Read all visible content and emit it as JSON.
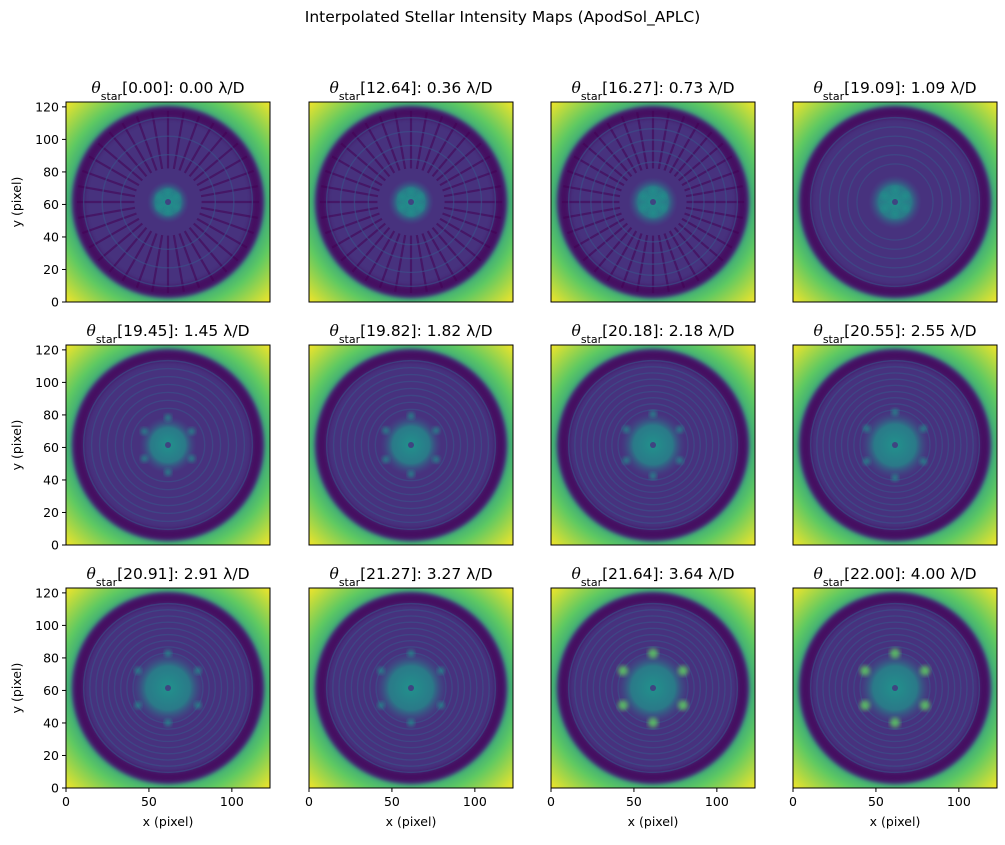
{
  "figure": {
    "title": "Interpolated Stellar Intensity Maps (ApodSol_APLC)"
  },
  "chart_data": {
    "type": "heatmap",
    "colormap": "viridis",
    "grid": {
      "rows": 3,
      "cols": 4
    },
    "xlabel": "x (pixel)",
    "ylabel": "y (pixel)",
    "xlim": [
      0,
      123
    ],
    "ylim": [
      0,
      123
    ],
    "xticks": [
      0,
      50,
      100
    ],
    "yticks": [
      0,
      20,
      40,
      60,
      80,
      100,
      120
    ],
    "panels": [
      {
        "theta_star": "0.00",
        "sep": "0.00 λ/D"
      },
      {
        "theta_star": "12.64",
        "sep": "0.36 λ/D"
      },
      {
        "theta_star": "16.27",
        "sep": "0.73 λ/D"
      },
      {
        "theta_star": "19.09",
        "sep": "1.09 λ/D"
      },
      {
        "theta_star": "19.45",
        "sep": "1.45 λ/D"
      },
      {
        "theta_star": "19.82",
        "sep": "1.82 λ/D"
      },
      {
        "theta_star": "20.18",
        "sep": "2.18 λ/D"
      },
      {
        "theta_star": "20.55",
        "sep": "2.55 λ/D"
      },
      {
        "theta_star": "20.91",
        "sep": "2.91 λ/D"
      },
      {
        "theta_star": "21.27",
        "sep": "3.27 λ/D"
      },
      {
        "theta_star": "21.64",
        "sep": "3.64 λ/D"
      },
      {
        "theta_star": "22.00",
        "sep": "4.00 λ/D"
      }
    ],
    "colors": {
      "dark": "#440154",
      "dark2": "#46327e",
      "mid": "#3b528b",
      "teal": "#21918c",
      "green": "#5ec962",
      "yellow": "#fde725"
    }
  }
}
